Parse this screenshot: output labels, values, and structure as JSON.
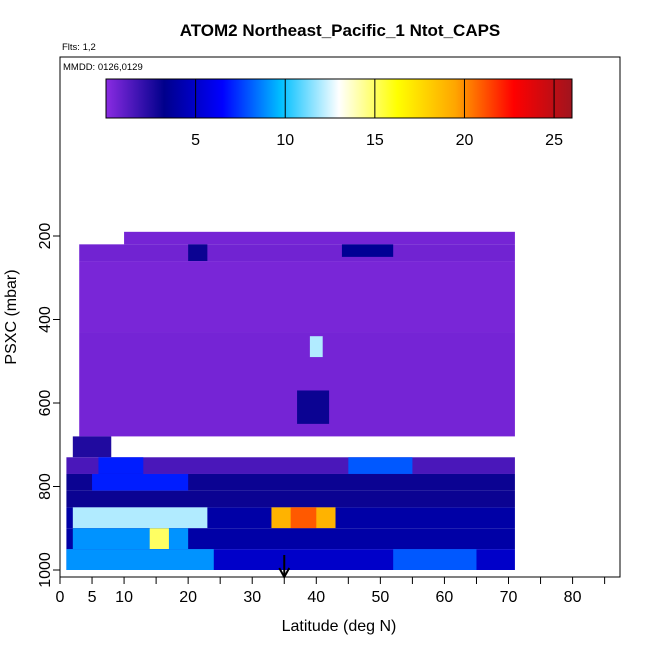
{
  "chart_data": {
    "type": "heatmap",
    "title": "ATOM2 Northeast_Pacific_1 Ntot_CAPS",
    "flights_label": "Flts: 1,2",
    "dates_label": "MMDD: 0126,0129",
    "xlabel": "Latitude (deg N)",
    "ylabel": "PSXC (mbar)",
    "xlim": [
      0,
      85
    ],
    "ylim": [
      1000,
      100
    ],
    "x_ticks": [
      0,
      5,
      10,
      20,
      30,
      40,
      50,
      60,
      70,
      80
    ],
    "y_ticks": [
      200,
      400,
      600,
      800,
      1000
    ],
    "colorbar": {
      "min": 0,
      "max": 26,
      "ticks": [
        5,
        10,
        15,
        20,
        25
      ],
      "colors": [
        "#8a2be2",
        "#00008b",
        "#0000ff",
        "#00bfff",
        "#ffffff",
        "#ffff00",
        "#ffa500",
        "#ff0000",
        "#a0141e"
      ]
    },
    "marker_latitude": 35,
    "background_color": "#9b30ff",
    "cells": [
      {
        "lat": [
          10,
          71
        ],
        "p": [
          190,
          220
        ],
        "v": 0.5
      },
      {
        "lat": [
          3,
          71
        ],
        "p": [
          220,
          260
        ],
        "v": 0.6
      },
      {
        "lat": [
          20,
          23
        ],
        "p": [
          220,
          260
        ],
        "v": 3
      },
      {
        "lat": [
          44,
          52
        ],
        "p": [
          220,
          250
        ],
        "v": 3.5
      },
      {
        "lat": [
          3,
          71
        ],
        "p": [
          260,
          430
        ],
        "v": 0.4
      },
      {
        "lat": [
          3,
          71
        ],
        "p": [
          430,
          680
        ],
        "v": 0.5
      },
      {
        "lat": [
          2,
          8
        ],
        "p": [
          680,
          730
        ],
        "v": 2.5
      },
      {
        "lat": [
          1,
          71
        ],
        "p": [
          730,
          770
        ],
        "v": 1.5
      },
      {
        "lat": [
          6,
          13
        ],
        "p": [
          730,
          770
        ],
        "v": 7
      },
      {
        "lat": [
          45,
          55
        ],
        "p": [
          730,
          770
        ],
        "v": 8
      },
      {
        "lat": [
          1,
          71
        ],
        "p": [
          770,
          810
        ],
        "v": 3
      },
      {
        "lat": [
          5,
          20
        ],
        "p": [
          770,
          810
        ],
        "v": 7
      },
      {
        "lat": [
          1,
          71
        ],
        "p": [
          810,
          850
        ],
        "v": 3
      },
      {
        "lat": [
          1,
          71
        ],
        "p": [
          850,
          900
        ],
        "v": 4
      },
      {
        "lat": [
          2,
          23
        ],
        "p": [
          850,
          900
        ],
        "v": 12
      },
      {
        "lat": [
          33,
          43
        ],
        "p": [
          850,
          900
        ],
        "v": 19
      },
      {
        "lat": [
          36,
          40
        ],
        "p": [
          850,
          900
        ],
        "v": 21
      },
      {
        "lat": [
          1,
          71
        ],
        "p": [
          900,
          950
        ],
        "v": 4
      },
      {
        "lat": [
          2,
          20
        ],
        "p": [
          900,
          950
        ],
        "v": 9
      },
      {
        "lat": [
          14,
          17
        ],
        "p": [
          900,
          950
        ],
        "v": 15
      },
      {
        "lat": [
          1,
          71
        ],
        "p": [
          950,
          1000
        ],
        "v": 5
      },
      {
        "lat": [
          1,
          24
        ],
        "p": [
          950,
          1000
        ],
        "v": 9
      },
      {
        "lat": [
          52,
          65
        ],
        "p": [
          950,
          1000
        ],
        "v": 8
      },
      {
        "lat": [
          39,
          41
        ],
        "p": [
          440,
          490
        ],
        "v": 12
      },
      {
        "lat": [
          37,
          42
        ],
        "p": [
          570,
          650
        ],
        "v": 3
      }
    ]
  }
}
